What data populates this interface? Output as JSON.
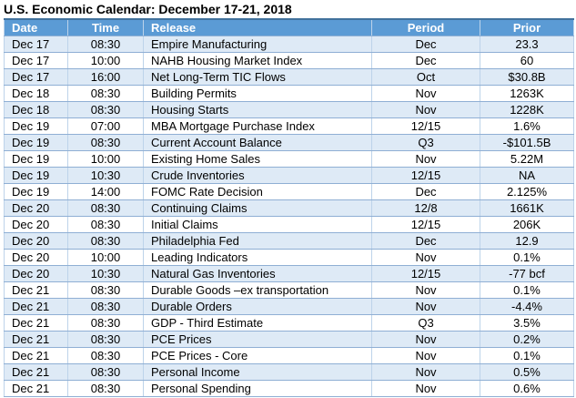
{
  "title": "U.S. Economic Calendar: December 17-21, 2018",
  "colors": {
    "header_bg": "#5B9BD5",
    "header_text": "#FFFFFF",
    "band_row_bg": "#DEEAF6",
    "row_bg": "#FFFFFF",
    "border_horizontal": "#8FAFD4",
    "border_vertical": "#BDD3EA",
    "outer_border": "#41719C",
    "title_text": "#000000"
  },
  "table": {
    "columns": [
      {
        "key": "date",
        "label": "Date",
        "align": "left"
      },
      {
        "key": "time",
        "label": "Time",
        "align": "center"
      },
      {
        "key": "release",
        "label": "Release",
        "align": "left"
      },
      {
        "key": "period",
        "label": "Period",
        "align": "center"
      },
      {
        "key": "prior",
        "label": "Prior",
        "align": "center"
      }
    ],
    "rows": [
      {
        "date": "Dec 17",
        "time": "08:30",
        "release": "Empire Manufacturing",
        "period": "Dec",
        "prior": "23.3"
      },
      {
        "date": "Dec 17",
        "time": "10:00",
        "release": "NAHB Housing Market Index",
        "period": "Dec",
        "prior": "60"
      },
      {
        "date": "Dec 17",
        "time": "16:00",
        "release": "Net Long-Term TIC Flows",
        "period": "Oct",
        "prior": "$30.8B"
      },
      {
        "date": "Dec 18",
        "time": "08:30",
        "release": "Building Permits",
        "period": "Nov",
        "prior": "1263K"
      },
      {
        "date": "Dec 18",
        "time": "08:30",
        "release": "Housing Starts",
        "period": "Nov",
        "prior": "1228K"
      },
      {
        "date": "Dec 19",
        "time": "07:00",
        "release": "MBA Mortgage Purchase Index",
        "period": "12/15",
        "prior": "1.6%"
      },
      {
        "date": "Dec 19",
        "time": "08:30",
        "release": "Current Account Balance",
        "period": "Q3",
        "prior": "-$101.5B"
      },
      {
        "date": "Dec 19",
        "time": "10:00",
        "release": "Existing Home Sales",
        "period": "Nov",
        "prior": "5.22M"
      },
      {
        "date": "Dec 19",
        "time": "10:30",
        "release": "Crude Inventories",
        "period": "12/15",
        "prior": "NA"
      },
      {
        "date": "Dec 19",
        "time": "14:00",
        "release": "FOMC Rate Decision",
        "period": "Dec",
        "prior": "2.125%"
      },
      {
        "date": "Dec 20",
        "time": "08:30",
        "release": "Continuing Claims",
        "period": "12/8",
        "prior": "1661K"
      },
      {
        "date": "Dec 20",
        "time": "08:30",
        "release": "Initial Claims",
        "period": "12/15",
        "prior": "206K"
      },
      {
        "date": "Dec 20",
        "time": "08:30",
        "release": "Philadelphia Fed",
        "period": "Dec",
        "prior": "12.9"
      },
      {
        "date": "Dec 20",
        "time": "10:00",
        "release": "Leading Indicators",
        "period": "Nov",
        "prior": "0.1%"
      },
      {
        "date": "Dec 20",
        "time": "10:30",
        "release": "Natural Gas Inventories",
        "period": "12/15",
        "prior": "-77 bcf"
      },
      {
        "date": "Dec 21",
        "time": "08:30",
        "release": "Durable Goods –ex transportation",
        "period": "Nov",
        "prior": "0.1%"
      },
      {
        "date": "Dec 21",
        "time": "08:30",
        "release": "Durable Orders",
        "period": "Nov",
        "prior": "-4.4%"
      },
      {
        "date": "Dec 21",
        "time": "08:30",
        "release": "GDP - Third Estimate",
        "period": "Q3",
        "prior": "3.5%"
      },
      {
        "date": "Dec 21",
        "time": "08:30",
        "release": "PCE Prices",
        "period": "Nov",
        "prior": "0.2%"
      },
      {
        "date": "Dec 21",
        "time": "08:30",
        "release": "PCE Prices - Core",
        "period": "Nov",
        "prior": "0.1%"
      },
      {
        "date": "Dec 21",
        "time": "08:30",
        "release": "Personal Income",
        "period": "Nov",
        "prior": "0.5%"
      },
      {
        "date": "Dec 21",
        "time": "08:30",
        "release": "Personal Spending",
        "period": "Nov",
        "prior": "0.6%"
      }
    ]
  }
}
